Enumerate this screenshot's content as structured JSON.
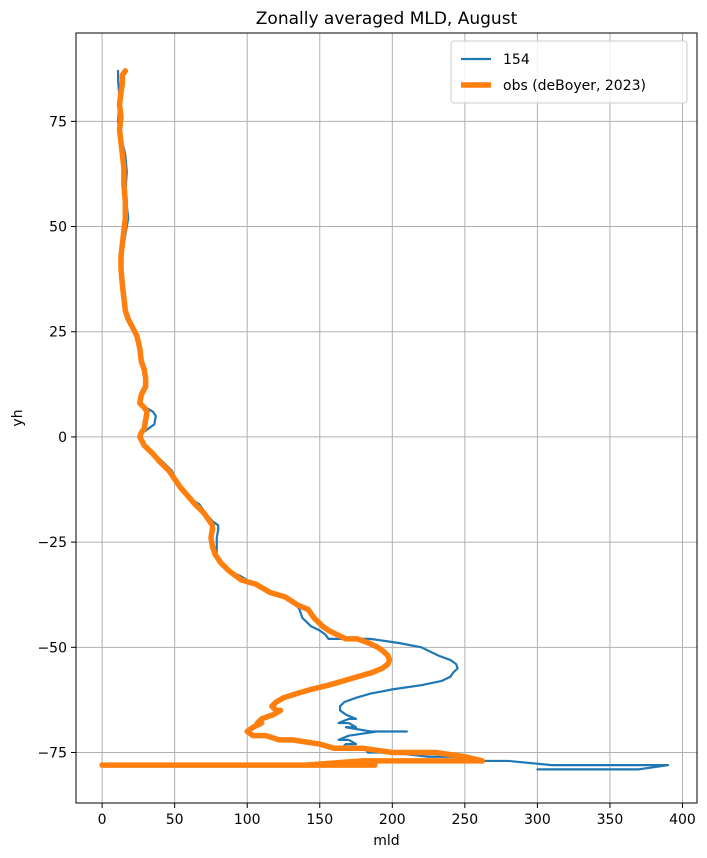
{
  "chart_data": {
    "type": "line",
    "title": "Zonally averaged MLD, August",
    "xlabel": "mld",
    "ylabel": "yh",
    "xlim": [
      -18,
      410
    ],
    "ylim": [
      -87,
      96
    ],
    "xticks": [
      0,
      50,
      100,
      150,
      200,
      250,
      300,
      350,
      400
    ],
    "yticks": [
      75,
      50,
      25,
      0,
      -25,
      -50,
      -75
    ],
    "xtick_labels": [
      "0",
      "50",
      "100",
      "150",
      "200",
      "250",
      "300",
      "350",
      "400"
    ],
    "ytick_labels": [
      "75",
      "50",
      "25",
      "0",
      "−25",
      "−50",
      "−75"
    ],
    "grid": true,
    "legend_position": "top-right",
    "series": [
      {
        "name": "154",
        "color": "#1f77b4",
        "points": [
          [
            11,
            87
          ],
          [
            11,
            85
          ],
          [
            12,
            80
          ],
          [
            11,
            75
          ],
          [
            12,
            72
          ],
          [
            14,
            70
          ],
          [
            16,
            67
          ],
          [
            17,
            63
          ],
          [
            16,
            58
          ],
          [
            17,
            55
          ],
          [
            18,
            52
          ],
          [
            16,
            48
          ],
          [
            14,
            44
          ],
          [
            14,
            40
          ],
          [
            15,
            35
          ],
          [
            15,
            32
          ],
          [
            17,
            29
          ],
          [
            20,
            27
          ],
          [
            23,
            24
          ],
          [
            26,
            21
          ],
          [
            27,
            18
          ],
          [
            29,
            16
          ],
          [
            30,
            14
          ],
          [
            30,
            12
          ],
          [
            27,
            10
          ],
          [
            26,
            8
          ],
          [
            30,
            7
          ],
          [
            35,
            6
          ],
          [
            37,
            5
          ],
          [
            36,
            3
          ],
          [
            32,
            2
          ],
          [
            28,
            1
          ],
          [
            27,
            0
          ],
          [
            30,
            -2
          ],
          [
            36,
            -4
          ],
          [
            42,
            -6
          ],
          [
            48,
            -8
          ],
          [
            51,
            -10
          ],
          [
            55,
            -13
          ],
          [
            62,
            -15
          ],
          [
            67,
            -16
          ],
          [
            71,
            -18
          ],
          [
            76,
            -20
          ],
          [
            80,
            -21
          ],
          [
            80,
            -22
          ],
          [
            79,
            -24
          ],
          [
            79,
            -26
          ],
          [
            79,
            -28
          ],
          [
            82,
            -30
          ],
          [
            88,
            -32
          ],
          [
            95,
            -33
          ],
          [
            105,
            -35
          ],
          [
            118,
            -37
          ],
          [
            128,
            -38
          ],
          [
            132,
            -39
          ],
          [
            136,
            -41
          ],
          [
            138,
            -43
          ],
          [
            144,
            -45
          ],
          [
            150,
            -46
          ],
          [
            154,
            -47
          ],
          [
            156,
            -48
          ],
          [
            160,
            -48
          ],
          [
            168,
            -48
          ],
          [
            185,
            -48
          ],
          [
            205,
            -49
          ],
          [
            220,
            -50
          ],
          [
            232,
            -52
          ],
          [
            240,
            -53
          ],
          [
            244,
            -54
          ],
          [
            245,
            -55
          ],
          [
            242,
            -56
          ],
          [
            240,
            -57
          ],
          [
            234,
            -58
          ],
          [
            220,
            -59
          ],
          [
            200,
            -60
          ],
          [
            185,
            -61
          ],
          [
            175,
            -62
          ],
          [
            167,
            -63
          ],
          [
            164,
            -64
          ],
          [
            164,
            -65
          ],
          [
            168,
            -66
          ],
          [
            175,
            -67
          ],
          [
            170,
            -67
          ],
          [
            163,
            -68
          ],
          [
            170,
            -68
          ],
          [
            175,
            -69
          ],
          [
            168,
            -69
          ],
          [
            185,
            -70
          ],
          [
            210,
            -70
          ],
          [
            190,
            -70
          ],
          [
            170,
            -71
          ],
          [
            163,
            -72
          ],
          [
            170,
            -72
          ],
          [
            175,
            -73
          ],
          [
            168,
            -73
          ],
          [
            165,
            -74
          ],
          [
            182,
            -74
          ],
          [
            183,
            -75
          ],
          [
            200,
            -75
          ],
          [
            225,
            -76
          ],
          [
            240,
            -76
          ],
          [
            262,
            -77
          ],
          [
            280,
            -77
          ],
          [
            310,
            -78
          ],
          [
            345,
            -78
          ],
          [
            360,
            -78
          ],
          [
            375,
            -78
          ],
          [
            390,
            -78
          ],
          [
            370,
            -79
          ],
          [
            300,
            -79
          ]
        ]
      },
      {
        "name": "obs (deBoyer, 2023)",
        "color": "#ff7f0e",
        "points": [
          [
            16,
            87
          ],
          [
            14,
            86
          ],
          [
            14,
            84
          ],
          [
            13,
            82
          ],
          [
            12,
            79
          ],
          [
            13,
            76
          ],
          [
            12,
            73
          ],
          [
            13,
            70
          ],
          [
            14,
            67
          ],
          [
            15,
            64
          ],
          [
            15,
            60
          ],
          [
            16,
            56
          ],
          [
            16,
            52
          ],
          [
            15,
            49
          ],
          [
            14,
            46
          ],
          [
            13,
            43
          ],
          [
            13,
            40
          ],
          [
            14,
            36
          ],
          [
            15,
            33
          ],
          [
            16,
            30
          ],
          [
            18,
            28
          ],
          [
            21,
            26
          ],
          [
            24,
            24
          ],
          [
            26,
            21
          ],
          [
            27,
            18
          ],
          [
            29,
            16
          ],
          [
            30,
            14
          ],
          [
            30,
            12
          ],
          [
            27,
            10
          ],
          [
            26,
            8
          ],
          [
            29,
            7
          ],
          [
            31,
            6
          ],
          [
            30,
            4
          ],
          [
            29,
            2
          ],
          [
            27,
            1
          ],
          [
            26,
            0
          ],
          [
            29,
            -2
          ],
          [
            35,
            -4
          ],
          [
            40,
            -6
          ],
          [
            46,
            -8
          ],
          [
            50,
            -10
          ],
          [
            54,
            -12
          ],
          [
            59,
            -14
          ],
          [
            64,
            -16
          ],
          [
            70,
            -18
          ],
          [
            74,
            -20
          ],
          [
            76,
            -21
          ],
          [
            76,
            -22
          ],
          [
            75,
            -24
          ],
          [
            76,
            -26
          ],
          [
            78,
            -28
          ],
          [
            82,
            -30
          ],
          [
            88,
            -32
          ],
          [
            96,
            -34
          ],
          [
            106,
            -35
          ],
          [
            116,
            -37
          ],
          [
            126,
            -38
          ],
          [
            135,
            -40
          ],
          [
            142,
            -41
          ],
          [
            146,
            -43
          ],
          [
            152,
            -45
          ],
          [
            156,
            -46
          ],
          [
            162,
            -47
          ],
          [
            168,
            -48
          ],
          [
            176,
            -48
          ],
          [
            184,
            -49
          ],
          [
            190,
            -50
          ],
          [
            194,
            -51
          ],
          [
            197,
            -52
          ],
          [
            198,
            -53
          ],
          [
            197,
            -54
          ],
          [
            193,
            -55
          ],
          [
            186,
            -56
          ],
          [
            176,
            -57
          ],
          [
            166,
            -58
          ],
          [
            156,
            -59
          ],
          [
            144,
            -60
          ],
          [
            134,
            -61
          ],
          [
            125,
            -62
          ],
          [
            120,
            -63
          ],
          [
            117,
            -64
          ],
          [
            120,
            -65
          ],
          [
            123,
            -65
          ],
          [
            118,
            -66
          ],
          [
            110,
            -67
          ],
          [
            107,
            -68
          ],
          [
            110,
            -68
          ],
          [
            104,
            -69
          ],
          [
            100,
            -70
          ],
          [
            104,
            -71
          ],
          [
            113,
            -71
          ],
          [
            122,
            -72
          ],
          [
            131,
            -72
          ],
          [
            150,
            -73
          ],
          [
            160,
            -74
          ],
          [
            180,
            -74
          ],
          [
            200,
            -75
          ],
          [
            230,
            -75
          ],
          [
            250,
            -76
          ],
          [
            262,
            -77
          ],
          [
            240,
            -77
          ],
          [
            210,
            -77
          ],
          [
            180,
            -77
          ],
          [
            140,
            -78
          ],
          [
            100,
            -78
          ],
          [
            60,
            -78
          ],
          [
            0,
            -78
          ],
          [
            60,
            -78
          ],
          [
            120,
            -78
          ],
          [
            188,
            -78
          ]
        ]
      }
    ]
  }
}
